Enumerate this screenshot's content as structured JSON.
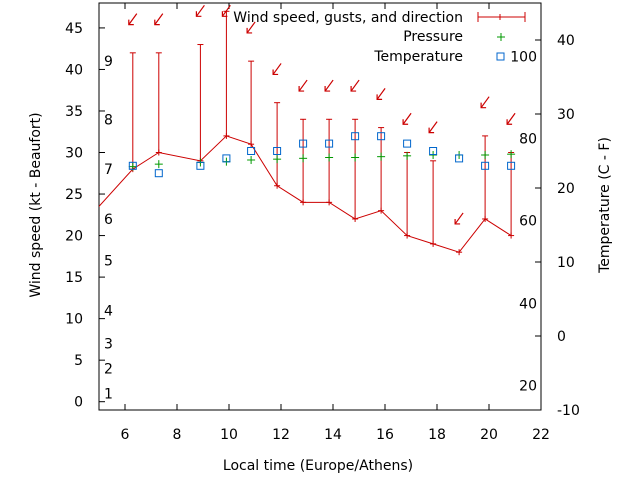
{
  "chart_data": {
    "type": "line",
    "xlabel": "Local time (Europe/Athens)",
    "ylabel": "Wind speed (kt - Beaufort)",
    "y2label": "Temperature (C - F)",
    "xlim": [
      5,
      22
    ],
    "ylim": [
      -1,
      48
    ],
    "y2lim": [
      -10,
      45
    ],
    "x_ticks": [
      6,
      8,
      10,
      12,
      14,
      16,
      18,
      20,
      22
    ],
    "y_ticks": [
      0,
      5,
      10,
      15,
      20,
      25,
      30,
      35,
      40,
      45
    ],
    "y2_ticks": [
      -10,
      0,
      10,
      20,
      30,
      40
    ],
    "beaufort_labels": [
      {
        "label": "1",
        "kt": 1
      },
      {
        "label": "2",
        "kt": 4
      },
      {
        "label": "3",
        "kt": 7
      },
      {
        "label": "4",
        "kt": 11
      },
      {
        "label": "5",
        "kt": 17
      },
      {
        "label": "6",
        "kt": 22
      },
      {
        "label": "7",
        "kt": 28
      },
      {
        "label": "8",
        "kt": 34
      },
      {
        "label": "9",
        "kt": 41
      }
    ],
    "fahrenheit_labels": [
      {
        "label": "20",
        "c": -6.7
      },
      {
        "label": "40",
        "c": 4.4
      },
      {
        "label": "60",
        "c": 15.6
      },
      {
        "label": "80",
        "c": 26.7
      },
      {
        "label": "100",
        "c": 37.8
      }
    ],
    "legend": {
      "position": "top-right",
      "entries": [
        {
          "name": "Wind speed, gusts, and direction",
          "color": "#cc0000",
          "marker": "errorbar"
        },
        {
          "name": "Pressure",
          "color": "#009900",
          "marker": "plus"
        },
        {
          "name": "Temperature",
          "color": "#0066cc",
          "marker": "square"
        }
      ]
    },
    "series": [
      {
        "name": "Wind speed, gusts, and direction",
        "color": "#cc0000",
        "x": [
          4.85,
          6.3,
          7.3,
          8.9,
          9.9,
          10.85,
          11.85,
          12.85,
          13.85,
          14.85,
          15.85,
          16.85,
          17.85,
          18.85,
          19.85,
          20.85
        ],
        "speed": [
          23,
          28,
          30,
          29,
          32,
          31,
          26,
          24,
          24,
          22,
          23,
          20,
          19,
          18,
          22,
          20
        ],
        "gust": [
          null,
          42,
          42,
          43,
          47,
          41,
          36,
          34,
          34,
          34,
          33,
          30,
          29,
          null,
          32,
          30
        ],
        "arrow_y": [
          null,
          46,
          46,
          47,
          47,
          45,
          40,
          38,
          38,
          38,
          37,
          34,
          33,
          22,
          36,
          34
        ]
      },
      {
        "name": "Pressure",
        "color": "#009900",
        "x": [
          6.3,
          7.3,
          8.9,
          9.9,
          10.85,
          11.85,
          12.85,
          13.85,
          14.85,
          15.85,
          16.85,
          17.85,
          18.85,
          19.85,
          20.85
        ],
        "values": [
          28.3,
          28.6,
          28.8,
          28.9,
          29.1,
          29.2,
          29.3,
          29.4,
          29.4,
          29.5,
          29.6,
          29.7,
          29.7,
          29.7,
          29.8
        ]
      },
      {
        "name": "Temperature",
        "color": "#0066cc",
        "x": [
          6.3,
          7.3,
          8.9,
          9.9,
          10.85,
          11.85,
          12.85,
          13.85,
          14.85,
          15.85,
          16.85,
          17.85,
          18.85,
          19.85,
          20.85
        ],
        "values": [
          23,
          22,
          23,
          24,
          25,
          25,
          26,
          26,
          27,
          27,
          26,
          25,
          24,
          23,
          23
        ]
      }
    ]
  }
}
